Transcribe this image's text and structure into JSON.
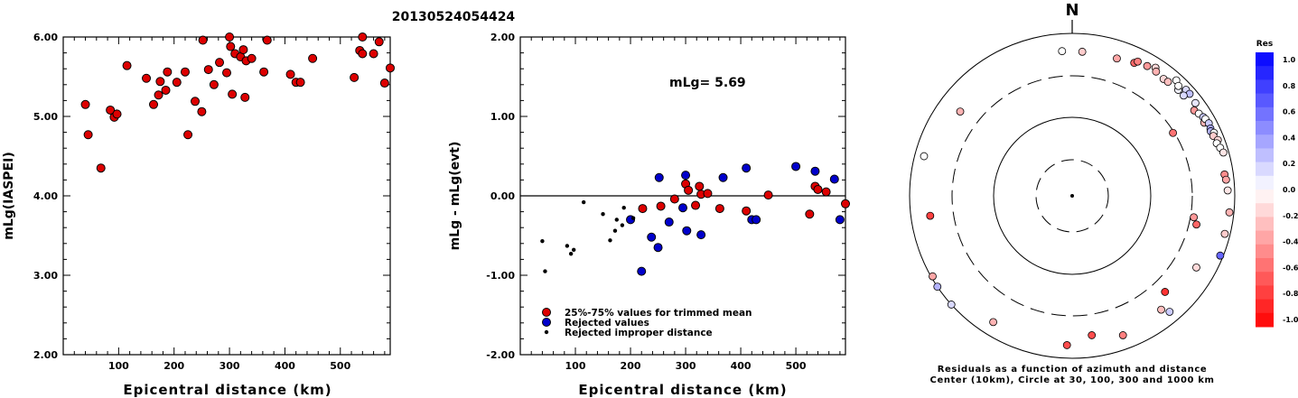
{
  "figure_title": "20130524054424",
  "chart_data": [
    {
      "type": "scatter",
      "ylabel": "mLg(IASPEI)",
      "xlabel": "Epicentral distance (km)",
      "xlim": [
        0,
        590
      ],
      "ylim": [
        2.0,
        6.0
      ],
      "xticks": [
        {
          "v": 100,
          "label": "100"
        },
        {
          "v": 200,
          "label": "200"
        },
        {
          "v": 300,
          "label": "300"
        },
        {
          "v": 400,
          "label": "400"
        },
        {
          "v": 500,
          "label": "500"
        }
      ],
      "yticks": [
        {
          "v": 2,
          "label": "2.00"
        },
        {
          "v": 3,
          "label": "3.00"
        },
        {
          "v": 4,
          "label": "4.00"
        },
        {
          "v": 5,
          "label": "5.00"
        },
        {
          "v": 6,
          "label": "6.00"
        }
      ],
      "points": [
        [
          40,
          5.15
        ],
        [
          45,
          4.77
        ],
        [
          68,
          4.35
        ],
        [
          85,
          5.08
        ],
        [
          92,
          4.99
        ],
        [
          97,
          5.03
        ],
        [
          115,
          5.64
        ],
        [
          150,
          5.48
        ],
        [
          163,
          5.15
        ],
        [
          172,
          5.27
        ],
        [
          175,
          5.44
        ],
        [
          185,
          5.33
        ],
        [
          188,
          5.56
        ],
        [
          205,
          5.43
        ],
        [
          220,
          5.56
        ],
        [
          225,
          4.77
        ],
        [
          238,
          5.19
        ],
        [
          250,
          5.06
        ],
        [
          252,
          5.96
        ],
        [
          262,
          5.59
        ],
        [
          272,
          5.4
        ],
        [
          282,
          5.68
        ],
        [
          295,
          5.55
        ],
        [
          300,
          6.0
        ],
        [
          302,
          5.88
        ],
        [
          305,
          5.28
        ],
        [
          310,
          5.79
        ],
        [
          320,
          5.75
        ],
        [
          325,
          5.84
        ],
        [
          328,
          5.24
        ],
        [
          330,
          5.7
        ],
        [
          340,
          5.73
        ],
        [
          362,
          5.56
        ],
        [
          368,
          5.96
        ],
        [
          410,
          5.53
        ],
        [
          420,
          5.43
        ],
        [
          428,
          5.43
        ],
        [
          450,
          5.73
        ],
        [
          525,
          5.49
        ],
        [
          535,
          5.83
        ],
        [
          540,
          5.79
        ],
        [
          540,
          6.02
        ],
        [
          560,
          5.79
        ],
        [
          570,
          5.94
        ],
        [
          580,
          5.42
        ],
        [
          590,
          5.61
        ]
      ]
    },
    {
      "type": "scatter",
      "ylabel": "mLg - mLg(evt)",
      "xlabel": "Epicentral distance (km)",
      "annotation": "mLg= 5.69",
      "xlim": [
        0,
        590
      ],
      "ylim": [
        -2.0,
        2.0
      ],
      "xticks": [
        {
          "v": 100,
          "label": "100"
        },
        {
          "v": 200,
          "label": "200"
        },
        {
          "v": 300,
          "label": "300"
        },
        {
          "v": 400,
          "label": "400"
        },
        {
          "v": 500,
          "label": "500"
        }
      ],
      "yticks": [
        {
          "v": -2,
          "label": "-2.00"
        },
        {
          "v": -1,
          "label": "-1.00"
        },
        {
          "v": 0,
          "label": "0.00"
        },
        {
          "v": 1,
          "label": "1.00"
        },
        {
          "v": 2,
          "label": "2.00"
        }
      ],
      "series": [
        {
          "name": "25%-75% values for trimmed mean",
          "color": "#dd0000",
          "marker": "circle",
          "points": [
            [
              222,
              -0.16
            ],
            [
              255,
              -0.13
            ],
            [
              280,
              -0.04
            ],
            [
              300,
              0.15
            ],
            [
              305,
              0.07
            ],
            [
              318,
              -0.12
            ],
            [
              325,
              0.12
            ],
            [
              328,
              0.02
            ],
            [
              340,
              0.03
            ],
            [
              362,
              -0.16
            ],
            [
              410,
              -0.19
            ],
            [
              450,
              0.01
            ],
            [
              525,
              -0.23
            ],
            [
              535,
              0.12
            ],
            [
              540,
              0.08
            ],
            [
              555,
              0.05
            ],
            [
              590,
              -0.1
            ]
          ]
        },
        {
          "name": "Rejected values",
          "color": "#0000cc",
          "marker": "circle",
          "points": [
            [
              200,
              -0.3
            ],
            [
              220,
              -0.95
            ],
            [
              238,
              -0.52
            ],
            [
              250,
              -0.65
            ],
            [
              252,
              0.23
            ],
            [
              270,
              -0.33
            ],
            [
              295,
              -0.15
            ],
            [
              300,
              0.26
            ],
            [
              302,
              -0.44
            ],
            [
              328,
              -0.49
            ],
            [
              368,
              0.23
            ],
            [
              410,
              0.35
            ],
            [
              420,
              -0.3
            ],
            [
              428,
              -0.3
            ],
            [
              500,
              0.37
            ],
            [
              535,
              0.31
            ],
            [
              570,
              0.21
            ],
            [
              580,
              -0.3
            ]
          ]
        },
        {
          "name": "Rejected improper distance",
          "color": "#000000",
          "marker": "dot",
          "points": [
            [
              40,
              -0.57
            ],
            [
              45,
              -0.95
            ],
            [
              85,
              -0.63
            ],
            [
              92,
              -0.73
            ],
            [
              97,
              -0.68
            ],
            [
              115,
              -0.08
            ],
            [
              150,
              -0.23
            ],
            [
              163,
              -0.56
            ],
            [
              172,
              -0.44
            ],
            [
              175,
              -0.3
            ],
            [
              185,
              -0.37
            ],
            [
              188,
              -0.15
            ],
            [
              205,
              -0.28
            ]
          ]
        }
      ]
    },
    {
      "type": "polar-scatter",
      "north_label": "N",
      "caption_line1": "Residuals as a function of azimuth and distance",
      "caption_line2": "Center (10km), Circle at 30, 100, 300 and 1000 km",
      "colorbar_title": "Res",
      "colorbar_ticks": [
        "1.0",
        "0.8",
        "0.6",
        "0.4",
        "0.2",
        "0.0",
        "-0.2",
        "-0.4",
        "-0.6",
        "-0.8",
        "-1.0"
      ],
      "points": [
        {
          "az": 58,
          "dist": 290,
          "res": -0.55
        },
        {
          "az": 38,
          "dist": 670,
          "res": -0.15
        },
        {
          "az": 33,
          "dist": 760,
          "res": -0.15
        },
        {
          "az": 34,
          "dist": 700,
          "res": -0.3
        },
        {
          "az": 40,
          "dist": 680,
          "res": -0.25
        },
        {
          "az": 30,
          "dist": 700,
          "res": -0.4
        },
        {
          "az": 25,
          "dist": 640,
          "res": -0.6
        },
        {
          "az": 26,
          "dist": 690,
          "res": -0.5
        },
        {
          "az": 45,
          "dist": 700,
          "res": 0.05
        },
        {
          "az": 42,
          "dist": 820,
          "res": 0.0
        },
        {
          "az": 44,
          "dist": 760,
          "res": 0.0
        },
        {
          "az": 47,
          "dist": 820,
          "res": 0.15
        },
        {
          "az": 49,
          "dist": 820,
          "res": 0.25
        },
        {
          "az": 48,
          "dist": 700,
          "res": 0.15
        },
        {
          "az": 53,
          "dist": 790,
          "res": 0.1
        },
        {
          "az": 55,
          "dist": 680,
          "res": -0.4
        },
        {
          "az": 57,
          "dist": 720,
          "res": 0.0
        },
        {
          "az": 59,
          "dist": 760,
          "res": 0.2
        },
        {
          "az": 61,
          "dist": 720,
          "res": -0.3
        },
        {
          "az": 60,
          "dist": 780,
          "res": 0.0
        },
        {
          "az": 62,
          "dist": 800,
          "res": 0.2
        },
        {
          "az": 64,
          "dist": 780,
          "res": 0.35
        },
        {
          "az": 65,
          "dist": 760,
          "res": 0.3
        },
        {
          "az": 66,
          "dist": 810,
          "res": 0.0
        },
        {
          "az": 67,
          "dist": 770,
          "res": -0.2
        },
        {
          "az": 69,
          "dist": 830,
          "res": -0.15
        },
        {
          "az": 70,
          "dist": 780,
          "res": 0.0
        },
        {
          "az": 72,
          "dist": 820,
          "res": 0.0
        },
        {
          "az": 74,
          "dist": 860,
          "res": -0.1
        },
        {
          "az": 82,
          "dist": 780,
          "res": -0.45
        },
        {
          "az": 84,
          "dist": 800,
          "res": -0.35
        },
        {
          "az": 88,
          "dist": 820,
          "res": -0.1
        },
        {
          "az": 96,
          "dist": 880,
          "res": -0.3
        },
        {
          "az": 104,
          "dist": 860,
          "res": -0.2
        },
        {
          "az": 112,
          "dist": 920,
          "res": 0.6
        },
        {
          "az": 100,
          "dist": 330,
          "res": -0.4
        },
        {
          "az": 103,
          "dist": 370,
          "res": -0.6
        },
        {
          "az": 120,
          "dist": 580,
          "res": -0.15
        },
        {
          "az": 136,
          "dist": 440,
          "res": -0.8
        },
        {
          "az": 140,
          "dist": 730,
          "res": 0.2
        },
        {
          "az": 142,
          "dist": 600,
          "res": -0.25
        },
        {
          "az": 160,
          "dist": 670,
          "res": -0.5
        },
        {
          "az": 172,
          "dist": 540,
          "res": -0.7
        },
        {
          "az": 182,
          "dist": 690,
          "res": -0.7
        },
        {
          "az": 212,
          "dist": 680,
          "res": -0.3
        },
        {
          "az": 240,
          "dist": 960,
          "res": -0.35
        },
        {
          "az": 236,
          "dist": 1000,
          "res": 0.3
        },
        {
          "az": 228,
          "dist": 1020,
          "res": 0.15
        },
        {
          "az": 262,
          "dist": 580,
          "res": -0.75
        },
        {
          "az": 285,
          "dist": 770,
          "res": 0.0
        },
        {
          "az": 307,
          "dist": 530,
          "res": -0.3
        },
        {
          "az": 356,
          "dist": 610,
          "res": 0.0
        },
        {
          "az": 4,
          "dist": 600,
          "res": -0.2
        },
        {
          "az": 18,
          "dist": 600,
          "res": -0.35
        }
      ]
    }
  ]
}
